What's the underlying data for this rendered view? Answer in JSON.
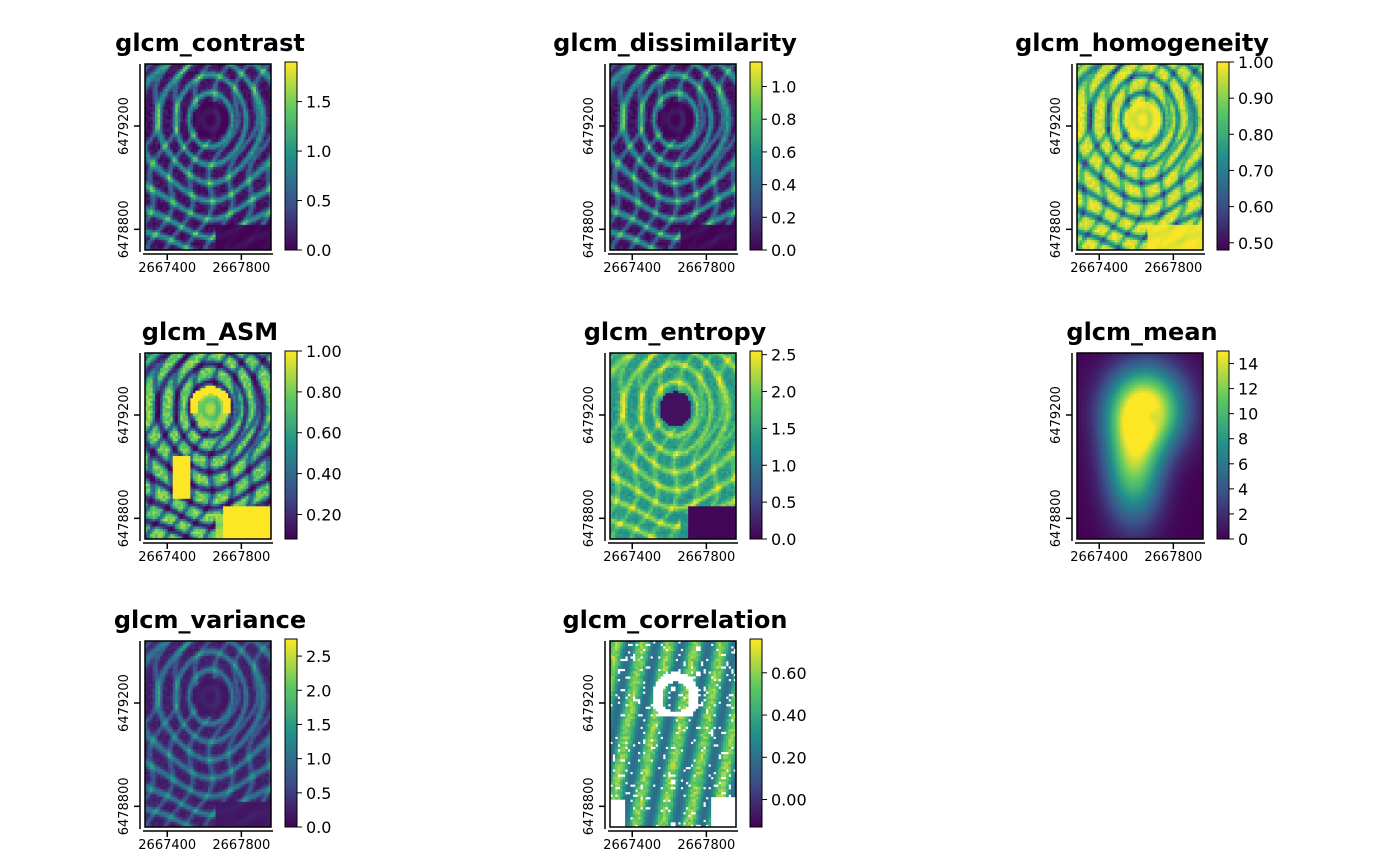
{
  "colormap": [
    "#440154",
    "#3b528b",
    "#21908c",
    "#5dc963",
    "#fde725"
  ],
  "chart_data": [
    {
      "name": "glcm_contrast",
      "title": "glcm_contrast",
      "type": "heatmap",
      "pattern": "rings",
      "value_range": [
        0.0,
        1.9
      ],
      "x_ticks": [
        2667400,
        2667800
      ],
      "y_ticks": [
        6478800,
        6479200
      ],
      "colorbar_ticks": [
        "0.0",
        "0.5",
        "1.0",
        "1.5"
      ],
      "colorbar_tick_values": [
        0.0,
        0.5,
        1.0,
        1.5
      ]
    },
    {
      "name": "glcm_dissimilarity",
      "title": "glcm_dissimilarity",
      "type": "heatmap",
      "pattern": "rings",
      "value_range": [
        0.0,
        1.15
      ],
      "x_ticks": [
        2667400,
        2667800
      ],
      "y_ticks": [
        6478800,
        6479200
      ],
      "colorbar_ticks": [
        "0.0",
        "0.2",
        "0.4",
        "0.6",
        "0.8",
        "1.0"
      ],
      "colorbar_tick_values": [
        0.0,
        0.2,
        0.4,
        0.6,
        0.8,
        1.0
      ]
    },
    {
      "name": "glcm_homogeneity",
      "title": "glcm_homogeneity",
      "type": "heatmap",
      "pattern": "rings-inverse",
      "value_range": [
        0.48,
        1.0
      ],
      "x_ticks": [
        2667400,
        2667800
      ],
      "y_ticks": [
        6478800,
        6479200
      ],
      "colorbar_ticks": [
        "0.50",
        "0.60",
        "0.70",
        "0.80",
        "0.90",
        "1.00"
      ],
      "colorbar_tick_values": [
        0.5,
        0.6,
        0.7,
        0.8,
        0.9,
        1.0
      ]
    },
    {
      "name": "glcm_ASM",
      "title": "glcm_ASM",
      "type": "heatmap",
      "pattern": "asm",
      "value_range": [
        0.08,
        1.0
      ],
      "x_ticks": [
        2667400,
        2667800
      ],
      "y_ticks": [
        6478800,
        6479200
      ],
      "colorbar_ticks": [
        "0.20",
        "0.40",
        "0.60",
        "0.80",
        "1.00"
      ],
      "colorbar_tick_values": [
        0.2,
        0.4,
        0.6,
        0.8,
        1.0
      ]
    },
    {
      "name": "glcm_entropy",
      "title": "glcm_entropy",
      "type": "heatmap",
      "pattern": "entropy",
      "value_range": [
        0.0,
        2.55
      ],
      "x_ticks": [
        2667400,
        2667800
      ],
      "y_ticks": [
        6478800,
        6479200
      ],
      "colorbar_ticks": [
        "0.0",
        "0.5",
        "1.0",
        "1.5",
        "2.0",
        "2.5"
      ],
      "colorbar_tick_values": [
        0.0,
        0.5,
        1.0,
        1.5,
        2.0,
        2.5
      ]
    },
    {
      "name": "glcm_mean",
      "title": "glcm_mean",
      "type": "heatmap",
      "pattern": "mean",
      "value_range": [
        0,
        15
      ],
      "x_ticks": [
        2667400,
        2667800
      ],
      "y_ticks": [
        6478800,
        6479200
      ],
      "colorbar_ticks": [
        "0",
        "2",
        "4",
        "6",
        "8",
        "10",
        "12",
        "14"
      ],
      "colorbar_tick_values": [
        0,
        2,
        4,
        6,
        8,
        10,
        12,
        14
      ]
    },
    {
      "name": "glcm_variance",
      "title": "glcm_variance",
      "type": "heatmap",
      "pattern": "variance",
      "value_range": [
        0.0,
        2.75
      ],
      "x_ticks": [
        2667400,
        2667800
      ],
      "y_ticks": [
        6478800,
        6479200
      ],
      "colorbar_ticks": [
        "0.0",
        "0.5",
        "1.0",
        "1.5",
        "2.0",
        "2.5"
      ],
      "colorbar_tick_values": [
        0.0,
        0.5,
        1.0,
        1.5,
        2.0,
        2.5
      ]
    },
    {
      "name": "glcm_correlation",
      "title": "glcm_correlation",
      "type": "heatmap",
      "pattern": "correlation",
      "value_range": [
        -0.13,
        0.76
      ],
      "x_ticks": [
        2667400,
        2667800
      ],
      "y_ticks": [
        6478800,
        6479200
      ],
      "colorbar_ticks": [
        "0.00",
        "0.20",
        "0.40",
        "0.60"
      ],
      "colorbar_tick_values": [
        0.0,
        0.2,
        0.4,
        0.6
      ]
    }
  ]
}
